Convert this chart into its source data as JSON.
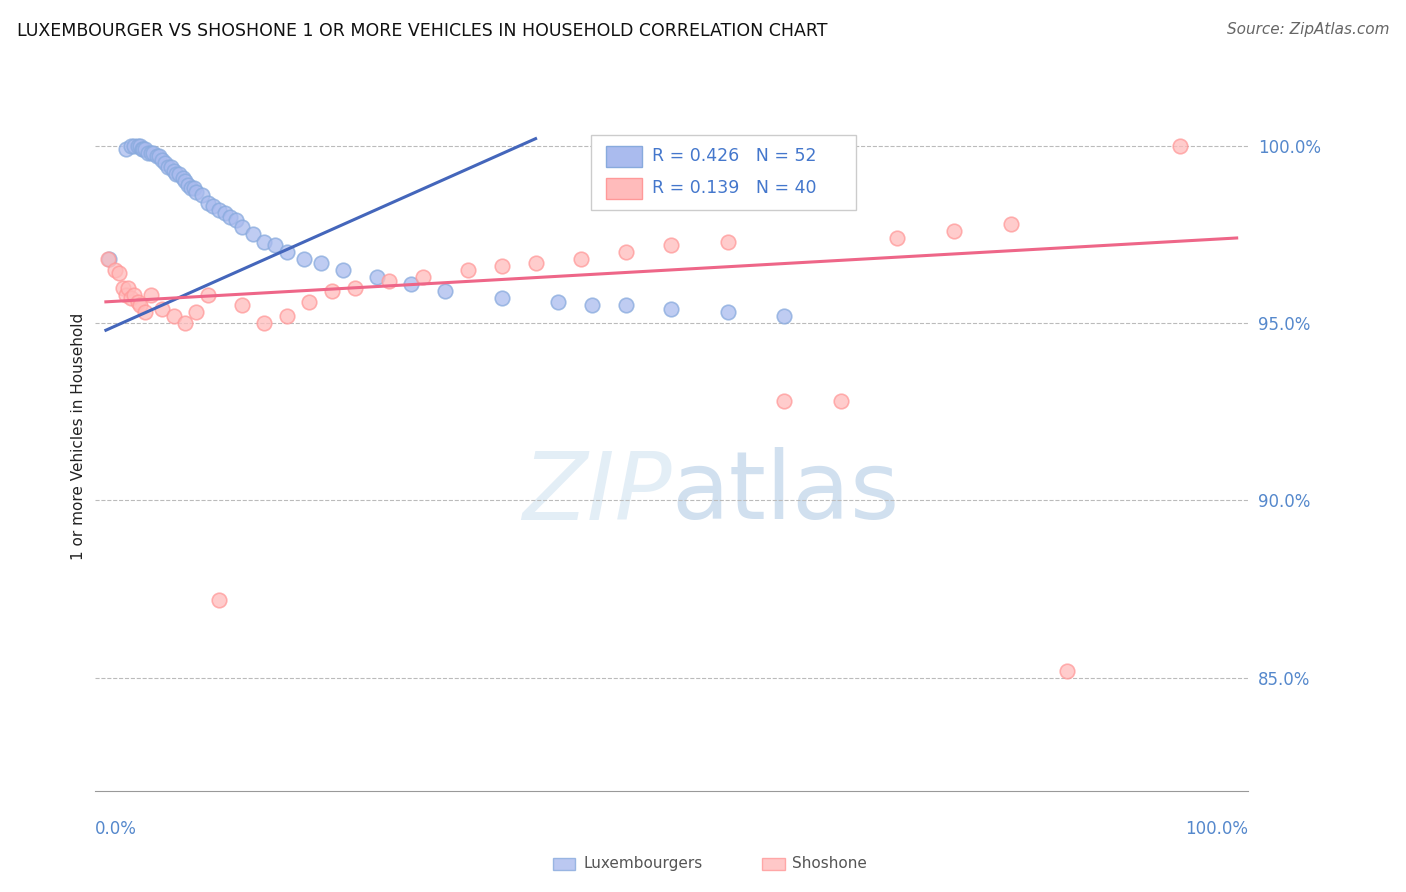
{
  "title": "LUXEMBOURGER VS SHOSHONE 1 OR MORE VEHICLES IN HOUSEHOLD CORRELATION CHART",
  "source": "Source: ZipAtlas.com",
  "ylabel": "1 or more Vehicles in Household",
  "watermark": "ZIPatlas",
  "xlim": [
    -0.01,
    1.01
  ],
  "ylim": [
    0.818,
    1.018
  ],
  "yticks": [
    0.85,
    0.9,
    0.95,
    1.0
  ],
  "ytick_labels": [
    "85.0%",
    "90.0%",
    "95.0%",
    "100.0%"
  ],
  "blue_color": "#88AADD",
  "pink_color": "#FF9999",
  "blue_fill": "#AABBEE",
  "pink_fill": "#FFBBBB",
  "trend_blue": "#4466BB",
  "trend_pink": "#EE6688",
  "blue_points_x": [
    0.003,
    0.018,
    0.022,
    0.025,
    0.028,
    0.03,
    0.032,
    0.033,
    0.035,
    0.037,
    0.04,
    0.042,
    0.045,
    0.047,
    0.05,
    0.052,
    0.055,
    0.058,
    0.06,
    0.062,
    0.065,
    0.068,
    0.07,
    0.073,
    0.075,
    0.078,
    0.08,
    0.085,
    0.09,
    0.095,
    0.1,
    0.105,
    0.11,
    0.115,
    0.12,
    0.13,
    0.14,
    0.15,
    0.16,
    0.175,
    0.19,
    0.21,
    0.24,
    0.27,
    0.3,
    0.35,
    0.4,
    0.43,
    0.46,
    0.5,
    0.55,
    0.6
  ],
  "blue_points_y": [
    0.968,
    0.999,
    1.0,
    1.0,
    1.0,
    1.0,
    0.999,
    0.999,
    0.999,
    0.998,
    0.998,
    0.998,
    0.997,
    0.997,
    0.996,
    0.995,
    0.994,
    0.994,
    0.993,
    0.992,
    0.992,
    0.991,
    0.99,
    0.989,
    0.988,
    0.988,
    0.987,
    0.986,
    0.984,
    0.983,
    0.982,
    0.981,
    0.98,
    0.979,
    0.977,
    0.975,
    0.973,
    0.972,
    0.97,
    0.968,
    0.967,
    0.965,
    0.963,
    0.961,
    0.959,
    0.957,
    0.956,
    0.955,
    0.955,
    0.954,
    0.953,
    0.952
  ],
  "pink_points_x": [
    0.002,
    0.008,
    0.012,
    0.015,
    0.018,
    0.02,
    0.022,
    0.025,
    0.028,
    0.03,
    0.035,
    0.04,
    0.05,
    0.06,
    0.07,
    0.08,
    0.09,
    0.1,
    0.12,
    0.14,
    0.16,
    0.18,
    0.2,
    0.22,
    0.25,
    0.28,
    0.32,
    0.35,
    0.38,
    0.42,
    0.46,
    0.5,
    0.55,
    0.6,
    0.65,
    0.7,
    0.75,
    0.8,
    0.85,
    0.95
  ],
  "pink_points_y": [
    0.968,
    0.965,
    0.964,
    0.96,
    0.958,
    0.96,
    0.957,
    0.958,
    0.956,
    0.955,
    0.953,
    0.958,
    0.954,
    0.952,
    0.95,
    0.953,
    0.958,
    0.872,
    0.955,
    0.95,
    0.952,
    0.956,
    0.959,
    0.96,
    0.962,
    0.963,
    0.965,
    0.966,
    0.967,
    0.968,
    0.97,
    0.972,
    0.973,
    0.928,
    0.928,
    0.974,
    0.976,
    0.978,
    0.852,
    1.0
  ],
  "trend_blue_x0": 0.0,
  "trend_blue_y0": 0.948,
  "trend_blue_x1": 0.38,
  "trend_blue_y1": 1.002,
  "trend_pink_x0": 0.0,
  "trend_pink_y0": 0.956,
  "trend_pink_x1": 1.0,
  "trend_pink_y1": 0.974
}
